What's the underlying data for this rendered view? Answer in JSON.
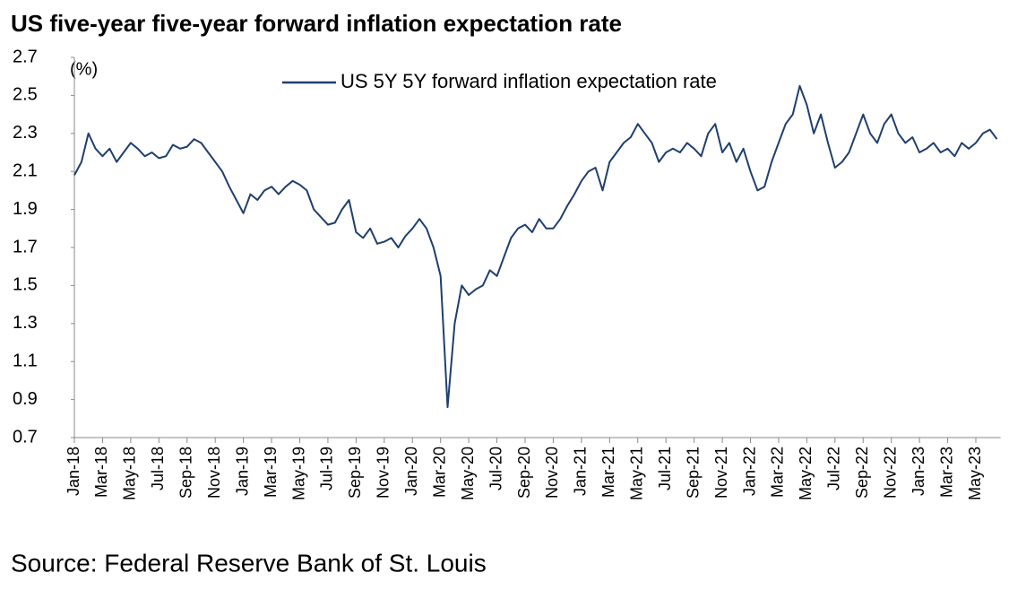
{
  "chart_data": {
    "type": "line",
    "title": "US five-year five-year forward inflation expectation rate",
    "y_label": "(%)",
    "source": "Source: Federal Reserve Bank of St. Louis",
    "categories": [
      "Jan-18",
      null,
      null,
      null,
      "Mar-18",
      null,
      null,
      null,
      "May-18",
      null,
      null,
      null,
      "Jul-18",
      null,
      null,
      null,
      "Sep-18",
      null,
      null,
      null,
      "Nov-18",
      null,
      null,
      null,
      "Jan-19",
      null,
      null,
      null,
      "Mar-19",
      null,
      null,
      null,
      "May-19",
      null,
      null,
      null,
      "Jul-19",
      null,
      null,
      null,
      "Sep-19",
      null,
      null,
      null,
      "Nov-19",
      null,
      null,
      null,
      "Jan-20",
      null,
      null,
      null,
      "Mar-20",
      null,
      null,
      null,
      "May-20",
      null,
      null,
      null,
      "Jul-20",
      null,
      null,
      null,
      "Sep-20",
      null,
      null,
      null,
      "Nov-20",
      null,
      null,
      null,
      "Jan-21",
      null,
      null,
      null,
      "Mar-21",
      null,
      null,
      null,
      "May-21",
      null,
      null,
      null,
      "Jul-21",
      null,
      null,
      null,
      "Sep-21",
      null,
      null,
      null,
      "Nov-21",
      null,
      null,
      null,
      "Jan-22",
      null,
      null,
      null,
      "Mar-22",
      null,
      null,
      null,
      "May-22",
      null,
      null,
      null,
      "Jul-22",
      null,
      null,
      null,
      "Sep-22",
      null,
      null,
      null,
      "Nov-22",
      null,
      null,
      null,
      "Jan-23",
      null,
      null,
      null,
      "Mar-23",
      null,
      null,
      null,
      "May-23",
      null,
      null,
      null
    ],
    "series": [
      {
        "name": "US 5Y 5Y forward inflation expectation rate",
        "color": "#1f3f6e",
        "values": [
          2.08,
          2.15,
          2.3,
          2.22,
          2.18,
          2.22,
          2.15,
          2.2,
          2.25,
          2.22,
          2.18,
          2.2,
          2.17,
          2.18,
          2.24,
          2.22,
          2.23,
          2.27,
          2.25,
          2.2,
          2.15,
          2.1,
          2.02,
          1.95,
          1.88,
          1.98,
          1.95,
          2.0,
          2.02,
          1.98,
          2.02,
          2.05,
          2.03,
          2.0,
          1.9,
          1.86,
          1.82,
          1.83,
          1.9,
          1.95,
          1.78,
          1.75,
          1.8,
          1.72,
          1.73,
          1.75,
          1.7,
          1.76,
          1.8,
          1.85,
          1.8,
          1.7,
          1.55,
          0.86,
          1.3,
          1.5,
          1.45,
          1.48,
          1.5,
          1.58,
          1.55,
          1.65,
          1.75,
          1.8,
          1.82,
          1.78,
          1.85,
          1.8,
          1.8,
          1.85,
          1.92,
          1.98,
          2.05,
          2.1,
          2.12,
          2.0,
          2.15,
          2.2,
          2.25,
          2.28,
          2.35,
          2.3,
          2.25,
          2.15,
          2.2,
          2.22,
          2.2,
          2.25,
          2.22,
          2.18,
          2.3,
          2.35,
          2.2,
          2.25,
          2.15,
          2.22,
          2.1,
          2.0,
          2.02,
          2.15,
          2.25,
          2.35,
          2.4,
          2.55,
          2.45,
          2.3,
          2.4,
          2.25,
          2.12,
          2.15,
          2.2,
          2.3,
          2.4,
          2.3,
          2.25,
          2.35,
          2.4,
          2.3,
          2.25,
          2.28,
          2.2,
          2.22,
          2.25,
          2.2,
          2.22,
          2.18,
          2.25,
          2.22,
          2.25,
          2.3,
          2.32,
          2.27
        ]
      }
    ],
    "ylim": [
      0.7,
      2.7
    ],
    "yticks": [
      0.7,
      0.9,
      1.1,
      1.3,
      1.5,
      1.7,
      1.9,
      2.1,
      2.3,
      2.5,
      2.7
    ]
  }
}
